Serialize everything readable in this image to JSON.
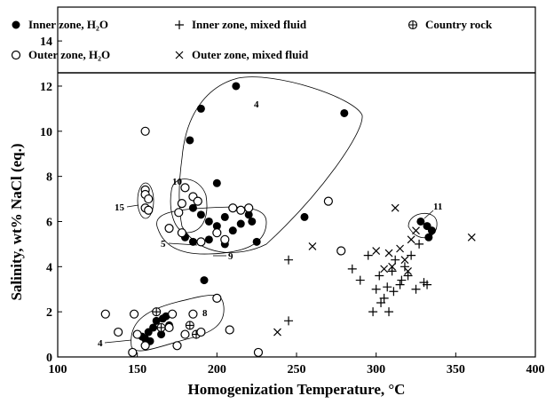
{
  "chart_data": {
    "type": "scatter",
    "x_label": "Homogenization Temperature, °C",
    "y_label": "Salinity, wt% NaCl (eq.)",
    "xlim": [
      100,
      400
    ],
    "xticks": [
      100,
      150,
      200,
      250,
      300,
      350,
      400
    ],
    "ylim": [
      0,
      15.5
    ],
    "yticks": [
      0,
      2,
      4,
      6,
      8,
      10,
      12,
      14
    ],
    "legend": "top",
    "annotations": [
      "4",
      "10",
      "15",
      "5",
      "9",
      "11",
      "8",
      "4"
    ],
    "series": [
      {
        "name": "Inner zone, H₂O",
        "marker": "filled-circle",
        "color": "#000000",
        "x": [
          212,
          190,
          183,
          280,
          200,
          255,
          185,
          190,
          195,
          200,
          205,
          210,
          215,
          220,
          222,
          225,
          180,
          185,
          195,
          205,
          192,
          328,
          332,
          335,
          333,
          155,
          157,
          160,
          162,
          165,
          168,
          170,
          158,
          153,
          166
        ],
        "values": [
          12.0,
          11.0,
          9.6,
          10.8,
          7.7,
          6.2,
          6.6,
          6.3,
          6.0,
          5.8,
          6.2,
          5.6,
          5.9,
          6.3,
          6.0,
          5.1,
          5.3,
          5.1,
          5.2,
          5.0,
          3.4,
          6.0,
          5.8,
          5.6,
          5.3,
          0.8,
          1.1,
          1.3,
          1.6,
          1.0,
          1.8,
          1.4,
          0.7,
          0.9,
          1.7
        ]
      },
      {
        "name": "Inner zone, mixed fluid",
        "marker": "plus",
        "color": "#000000",
        "x": [
          245,
          245,
          285,
          290,
          295,
          300,
          302,
          303,
          305,
          308,
          310,
          312,
          315,
          318,
          320,
          325,
          327,
          330,
          298,
          307,
          322,
          316,
          311,
          332
        ],
        "values": [
          4.3,
          1.6,
          3.9,
          3.4,
          4.5,
          3.0,
          3.6,
          2.4,
          2.6,
          2.0,
          3.8,
          4.3,
          3.2,
          4.0,
          3.6,
          3.0,
          5.0,
          3.3,
          2.0,
          3.1,
          4.5,
          3.4,
          2.9,
          3.2
        ]
      },
      {
        "name": "Country rock",
        "marker": "circle-plus",
        "color": "#000000",
        "x": [
          162,
          165,
          183,
          187
        ],
        "values": [
          2.0,
          1.3,
          1.4,
          1.0
        ]
      },
      {
        "name": "Outer zone, H₂O",
        "marker": "open-circle",
        "color": "#000000",
        "x": [
          155,
          155,
          155,
          157,
          155,
          157,
          180,
          185,
          178,
          176,
          188,
          210,
          215,
          220,
          170,
          178,
          200,
          205,
          190,
          270,
          278,
          130,
          138,
          148,
          147,
          150,
          170,
          172,
          180,
          185,
          190,
          200,
          208,
          226,
          175,
          155
        ],
        "values": [
          10.0,
          7.4,
          7.2,
          7.0,
          6.6,
          6.5,
          7.5,
          7.1,
          6.8,
          6.4,
          6.9,
          6.6,
          6.5,
          6.6,
          5.7,
          5.5,
          5.5,
          5.2,
          5.1,
          6.9,
          4.7,
          1.9,
          1.1,
          1.9,
          0.2,
          1.0,
          1.3,
          1.9,
          1.0,
          1.9,
          1.1,
          2.6,
          1.2,
          0.2,
          0.5,
          0.5
        ]
      },
      {
        "name": "Outer zone, mixed fluid",
        "marker": "cross",
        "color": "#000000",
        "x": [
          238,
          260,
          300,
          308,
          312,
          318,
          322,
          325,
          360,
          305,
          315,
          320,
          310
        ],
        "values": [
          1.1,
          4.9,
          4.7,
          4.6,
          6.6,
          4.3,
          5.2,
          5.6,
          5.3,
          3.9,
          4.8,
          3.8,
          4.0
        ]
      }
    ]
  }
}
